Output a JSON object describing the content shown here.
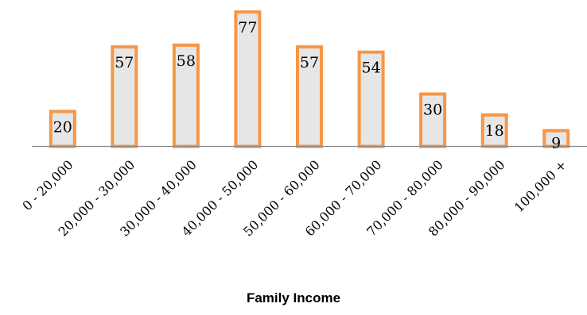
{
  "chart_data": {
    "type": "bar",
    "categories": [
      "0 - 20,000",
      "20,000 - 30,000",
      "30,000 - 40,000",
      "40,000 - 50,000",
      "50,000 - 60,000",
      "60,000 - 70,000",
      "70,000 - 80,000",
      "80,000 - 90,000",
      "100,000 +"
    ],
    "values": [
      20,
      57,
      58,
      77,
      57,
      54,
      30,
      18,
      9
    ],
    "title": "",
    "xlabel": "Family Income",
    "ylabel": "",
    "ylim": [
      0,
      80
    ],
    "grid": false,
    "legend": "none",
    "data_labels": true,
    "colors": {
      "bar_fill": "#e6e6e6",
      "bar_stroke": "#f79646",
      "axis": "#888888",
      "text": "#000000"
    }
  }
}
